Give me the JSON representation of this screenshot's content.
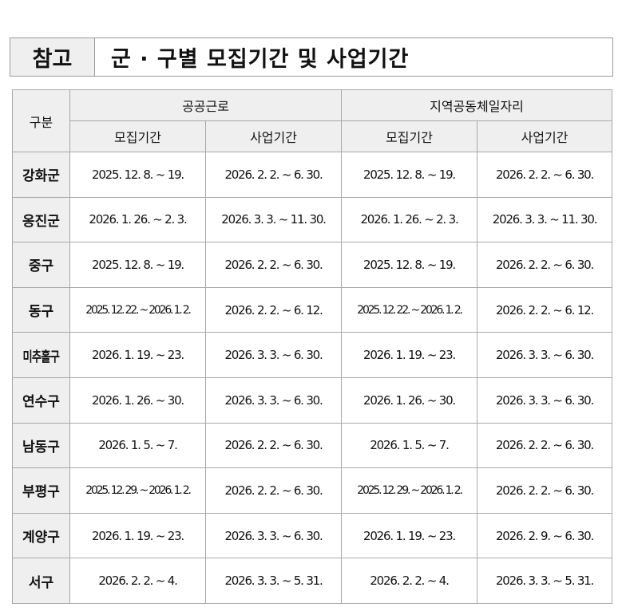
{
  "title": {
    "tag": "참고",
    "text": "군 · 구별 모집기간 및 사업기간"
  },
  "table": {
    "header": {
      "division": "구분",
      "group1": "공공근로",
      "group2": "지역공동체일자리",
      "sub": [
        "모집기간",
        "사업기간",
        "모집기간",
        "사업기간"
      ]
    },
    "rows": [
      {
        "name": "강화군",
        "cells": [
          "2025. 12. 8. ~ 19.",
          "2026. 2. 2. ~ 6. 30.",
          "2025. 12. 8. ~ 19.",
          "2026. 2. 2. ~ 6. 30."
        ]
      },
      {
        "name": "옹진군",
        "cells": [
          "2026. 1. 26. ~ 2. 3.",
          "2026. 3. 3. ~ 11. 30.",
          "2026. 1. 26. ~ 2. 3.",
          "2026. 3. 3. ~ 11. 30."
        ]
      },
      {
        "name": "중구",
        "cells": [
          "2025. 12. 8. ~ 19.",
          "2026. 2. 2. ~ 6. 30.",
          "2025. 12. 8. ~ 19.",
          "2026. 2. 2. ~ 6. 30."
        ]
      },
      {
        "name": "동구",
        "cells": [
          "2025. 12. 22. ~ 2026. 1. 2.",
          "2026. 2. 2. ~ 6. 12.",
          "2025. 12. 22. ~ 2026. 1. 2.",
          "2026. 2. 2. ~ 6. 12."
        ]
      },
      {
        "name": "미추홀구",
        "cells": [
          "2026. 1. 19. ~ 23.",
          "2026. 3. 3. ~ 6. 30.",
          "2026. 1. 19. ~ 23.",
          "2026. 3. 3. ~ 6. 30."
        ]
      },
      {
        "name": "연수구",
        "cells": [
          "2026. 1. 26. ~ 30.",
          "2026. 3. 3. ~ 6. 30.",
          "2026. 1. 26. ~ 30.",
          "2026. 3. 3. ~ 6. 30."
        ]
      },
      {
        "name": "남동구",
        "cells": [
          "2026. 1. 5. ~ 7.",
          "2026. 2. 2. ~ 6. 30.",
          "2026. 1. 5. ~ 7.",
          "2026. 2. 2. ~ 6. 30."
        ]
      },
      {
        "name": "부평구",
        "cells": [
          "2025. 12. 29. ~ 2026. 1. 2.",
          "2026. 2. 2. ~ 6. 30.",
          "2025. 12. 29. ~ 2026. 1. 2.",
          "2026. 2. 2. ~ 6. 30."
        ]
      },
      {
        "name": "계양구",
        "cells": [
          "2026. 1. 19. ~ 23.",
          "2026. 3. 3. ~ 6. 30.",
          "2026. 1. 19. ~ 23.",
          "2026. 2. 9. ~ 6. 30."
        ]
      },
      {
        "name": "서구",
        "cells": [
          "2026. 2. 2. ~ 4.",
          "2026. 3. 3. ~ 5. 31.",
          "2026. 2. 2. ~ 4.",
          "2026. 3. 3. ~ 5. 31."
        ]
      }
    ]
  }
}
